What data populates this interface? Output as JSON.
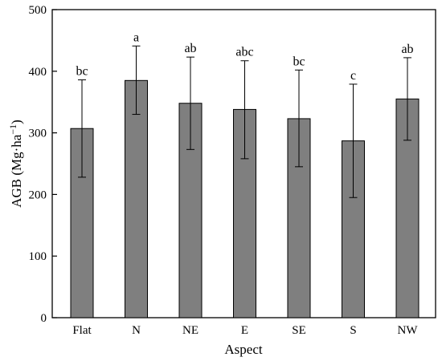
{
  "chart_data": {
    "type": "bar",
    "categories": [
      "Flat",
      "N",
      "NE",
      "E",
      "SE",
      "S",
      "NW"
    ],
    "values": [
      307,
      385,
      348,
      338,
      323,
      287,
      355
    ],
    "error_upper": [
      386,
      441,
      423,
      417,
      402,
      379,
      422
    ],
    "error_lower": [
      228,
      330,
      273,
      258,
      245,
      195,
      288
    ],
    "significance_letters": [
      "bc",
      "a",
      "ab",
      "abc",
      "bc",
      "c",
      "ab"
    ],
    "xlabel": "Aspect",
    "ylabel": "AGB (Mg·ha",
    "ylabel_superscript": "−1",
    "ylabel_close": ")",
    "ylim": [
      0,
      500
    ],
    "yticks": [
      0,
      100,
      200,
      300,
      400,
      500
    ],
    "grid": false,
    "bar_color": "#7f7f7f",
    "title": ""
  }
}
